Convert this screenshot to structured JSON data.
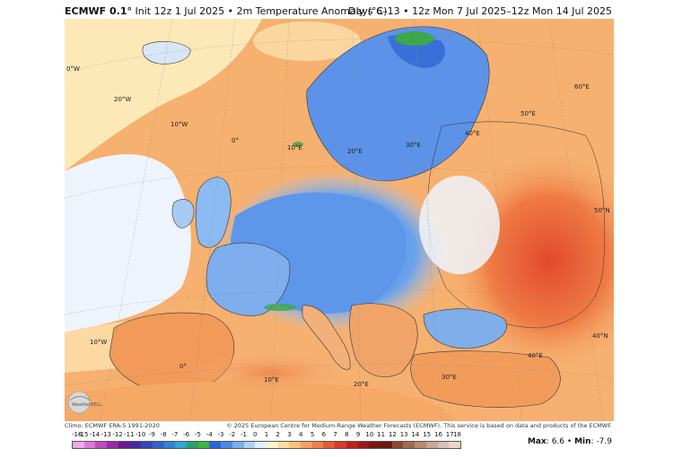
{
  "header": {
    "model": "ECMWF 0.1°",
    "description": "Init 12z 1 Jul 2025 • 2m Temperature Anomaly (°C)",
    "period": "Days 6–13 • 12z Mon 7 Jul 2025–12z Mon 14 Jul 2025"
  },
  "map": {
    "grid_labels": {
      "lon_0w_left": "0°W",
      "lon_20w": "20°W",
      "lon_10w_top": "10°W",
      "lon_0": "0°",
      "lon_10e_top": "10°E",
      "lon_20e_top": "20°E",
      "lon_30e_top": "30°E",
      "lon_40e_top": "40°E",
      "lon_50e": "50°E",
      "lon_60e": "60°E",
      "lat_50n": "50°N",
      "lat_40n": "40°N",
      "lon_10w_bottom": "10°W",
      "lon_0_bottom": "0°",
      "lon_10e_bottom": "10°E",
      "lon_20e_bottom": "20°E",
      "lon_30e_bottom": "30°E",
      "lon_40e_bottom": "40°E"
    },
    "logo_text": "WeatherBELL"
  },
  "credits": {
    "climo": "Climo: ECMWF ERA-5 1991-2020",
    "copyright": "© 2025 European Centre for Medium-Range Weather Forecasts (ECMWF). This service is based on data and products of the ECMWF."
  },
  "colorbar": {
    "ticks": [
      "-16",
      "-15",
      "-14",
      "-13",
      "-12",
      "-11",
      "-10",
      "-9",
      "-8",
      "-7",
      "-6",
      "-5",
      "-4",
      "-3",
      "-2",
      "-1",
      "0",
      "1",
      "2",
      "3",
      "4",
      "5",
      "6",
      "7",
      "8",
      "9",
      "10",
      "11",
      "12",
      "13",
      "14",
      "15",
      "16",
      "17",
      "18"
    ],
    "colors": [
      "#f0a8e8",
      "#e07ad8",
      "#c04cc0",
      "#9a2aa8",
      "#6a1a98",
      "#4a2aa0",
      "#3a44b8",
      "#3064cc",
      "#2a86d8",
      "#30a8d0",
      "#2aa070",
      "#3cb83c",
      "#2a66d8",
      "#4a8ae8",
      "#7ab0f0",
      "#b0d2f8",
      "#e4f0ff",
      "#fff4cc",
      "#ffdca0",
      "#ffc07a",
      "#f8a060",
      "#f08048",
      "#e85a34",
      "#d83a28",
      "#c0201e",
      "#a01818",
      "#801414",
      "#6a1a10",
      "#8a4a30",
      "#a06a50",
      "#b88a70",
      "#c8a890",
      "#d8c0b0",
      "#e8d8c8"
    ],
    "max_label": "Max",
    "max_value": "6.6",
    "separator": "•",
    "min_label": "Min",
    "min_value": "-7.9"
  }
}
